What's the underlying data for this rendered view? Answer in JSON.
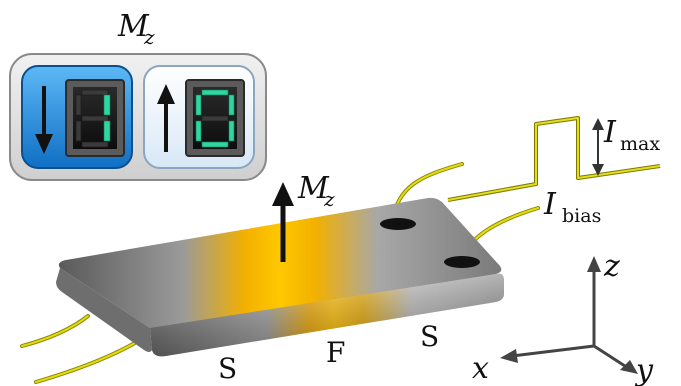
{
  "memory_panel": {
    "title_symbol": "M",
    "title_subscript": "z",
    "state_down_digit": "1",
    "state_up_digit": "0"
  },
  "device": {
    "magnetization_symbol": "M",
    "magnetization_subscript": "z",
    "left_label": "S",
    "center_label": "F",
    "right_label": "S"
  },
  "signal": {
    "max_symbol": "I",
    "max_subscript": "max",
    "bias_symbol": "I",
    "bias_subscript": "bias"
  },
  "axes": {
    "x_label": "x",
    "y_label": "y",
    "z_label": "z"
  },
  "colors": {
    "panel_blue": "#1d8fe0",
    "panel_light": "#e8f2fb",
    "digit_green": "#2fd6a0",
    "ferromagnet_gold": "#f4b400",
    "wire_yellow": "#e0d400"
  }
}
